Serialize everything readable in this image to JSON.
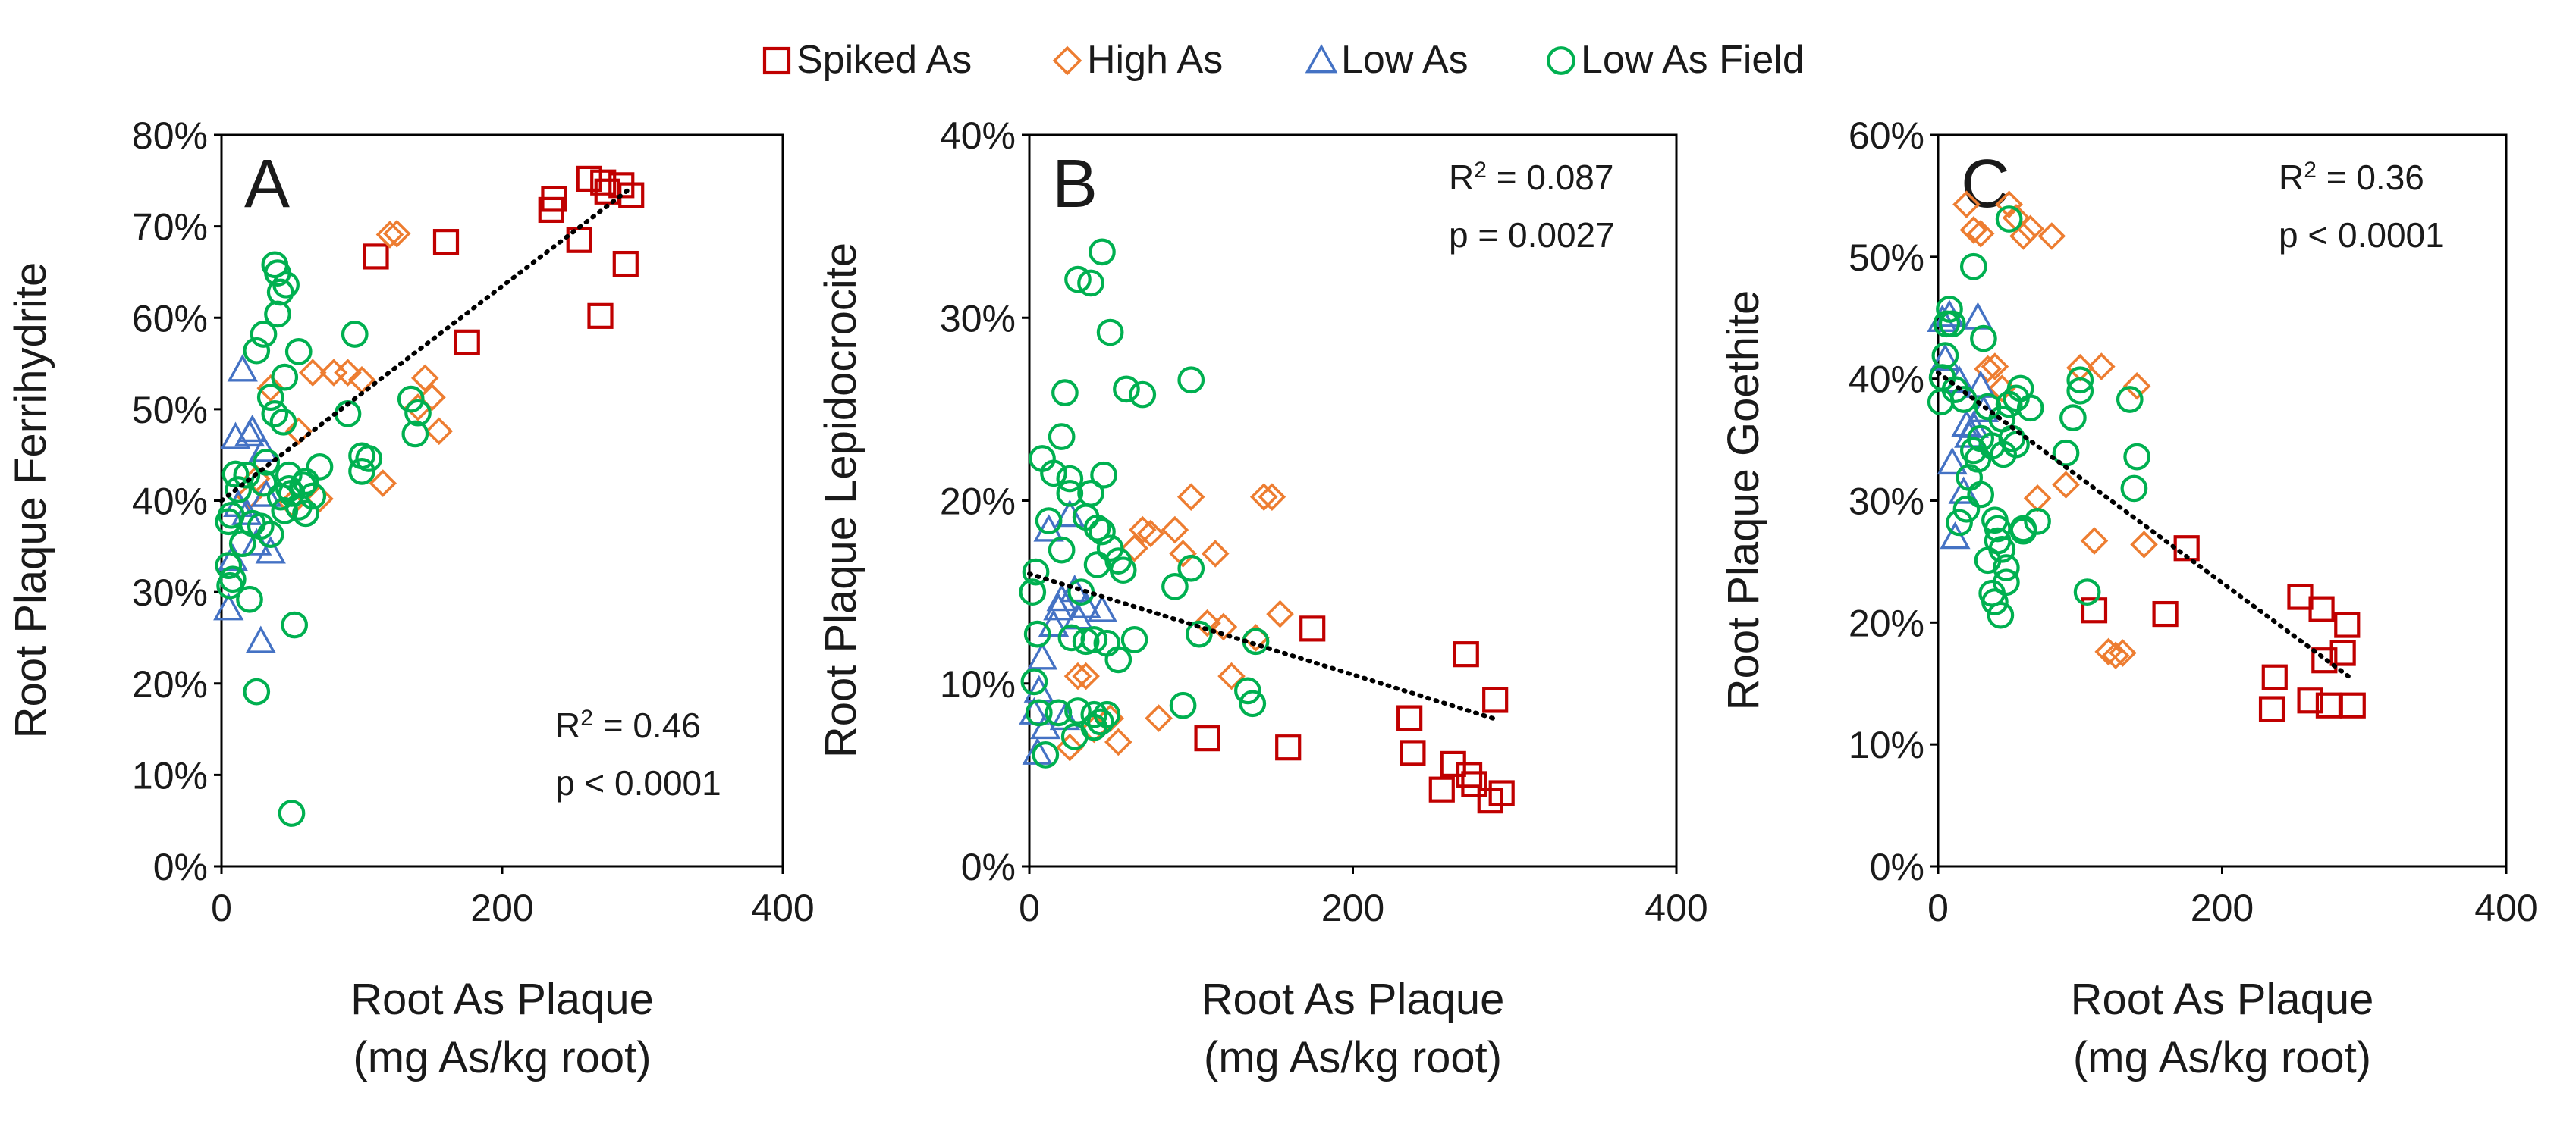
{
  "figure": {
    "legend": {
      "position": "top-center",
      "items": [
        {
          "series_index": 0,
          "label": "Spiked As",
          "marker": "square",
          "color": "#c00000"
        },
        {
          "series_index": 1,
          "label": "High As",
          "marker": "diamond",
          "color": "#ed7d31"
        },
        {
          "series_index": 2,
          "label": "Low As",
          "marker": "triangle",
          "color": "#4472c4"
        },
        {
          "series_index": 3,
          "label": "Low As Field",
          "marker": "circle",
          "color": "#00b050"
        }
      ]
    }
  },
  "chart_data": [
    {
      "type": "scatter",
      "panel_letter": "A",
      "ylabel": "Root Plaque Ferrihydrite",
      "xlabel_line1": "Root As Plaque",
      "xlabel_line2": "(mg As/kg root)",
      "xlim": [
        0,
        400
      ],
      "ylim": [
        0,
        80
      ],
      "x_ticks": [
        0,
        200,
        400
      ],
      "x_tick_labels": [
        "0",
        "200",
        "400"
      ],
      "y_ticks": [
        0,
        10,
        20,
        30,
        40,
        50,
        60,
        70,
        80
      ],
      "y_tick_labels": [
        "0%",
        "10%",
        "20%",
        "30%",
        "40%",
        "50%",
        "60%",
        "70%",
        "80%"
      ],
      "r2_prefix": "R",
      "r2_sup": "2",
      "r2_value": " = 0.46",
      "p_text": "p < 0.0001",
      "stats_position": "bottom-right",
      "trendline": {
        "x": [
          0,
          290
        ],
        "y": [
          40,
          74
        ]
      },
      "series": [
        {
          "name": "Spiked As",
          "x": [
            110,
            160,
            175,
            235,
            237,
            255,
            262,
            270,
            272,
            275,
            285,
            288,
            292
          ],
          "y": [
            66.7,
            68.3,
            57.3,
            71.8,
            73,
            68.5,
            75.2,
            60.2,
            74.8,
            73.8,
            74.5,
            65.9,
            73.4
          ]
        },
        {
          "name": "High As",
          "x": [
            20,
            25,
            35,
            50,
            55,
            65,
            70,
            80,
            90,
            100,
            115,
            120,
            125,
            140,
            145,
            150,
            155
          ],
          "y": [
            40.5,
            42.4,
            52.3,
            39.7,
            47.6,
            54,
            40.2,
            54,
            54,
            53.2,
            41.9,
            69.1,
            69.2,
            50.2,
            53.4,
            51.3,
            47.6
          ]
        },
        {
          "name": "Low As",
          "x": [
            5,
            8,
            10,
            12,
            15,
            18,
            20,
            22,
            25,
            28,
            30,
            32,
            35
          ],
          "y": [
            28.2,
            33.6,
            46.9,
            39.5,
            54.3,
            38.6,
            47.2,
            47.7,
            35.3,
            24.6,
            45.5,
            40.6,
            34.4
          ]
        },
        {
          "name": "Low As Field",
          "x": [
            5,
            5,
            6,
            7,
            8,
            10,
            12,
            15,
            18,
            20,
            22,
            25,
            25,
            28,
            30,
            30,
            32,
            35,
            35,
            38,
            38,
            40,
            40,
            42,
            42,
            44,
            45,
            45,
            46,
            48,
            48,
            50,
            50,
            52,
            55,
            55,
            58,
            60,
            60,
            65,
            70,
            90,
            95,
            100,
            100,
            105,
            135,
            138,
            140
          ],
          "y": [
            37.7,
            32.9,
            30.7,
            38.4,
            31.4,
            42.9,
            41.2,
            35.3,
            42.8,
            29.2,
            37.5,
            19.1,
            56.4,
            37.2,
            41.9,
            58.2,
            44.2,
            51.3,
            36.3,
            49.5,
            65.8,
            64.9,
            60.4,
            62.8,
            40.4,
            48.6,
            53.5,
            38.9,
            63.6,
            42.8,
            41.3,
            5.8,
            40.8,
            26.4,
            39.3,
            56.3,
            41.7,
            38.6,
            42.1,
            40.5,
            43.7,
            49.5,
            58.2,
            43.2,
            44.9,
            44.6,
            51.1,
            47.3,
            49.6
          ]
        }
      ]
    },
    {
      "type": "scatter",
      "panel_letter": "B",
      "ylabel": "Root Plaque Lepidocrocite",
      "xlabel_line1": "Root As Plaque",
      "xlabel_line2": "(mg As/kg root)",
      "xlim": [
        0,
        400
      ],
      "ylim": [
        0,
        40
      ],
      "x_ticks": [
        0,
        200,
        400
      ],
      "x_tick_labels": [
        "0",
        "200",
        "400"
      ],
      "y_ticks": [
        0,
        10,
        20,
        30,
        40
      ],
      "y_tick_labels": [
        "0%",
        "10%",
        "20%",
        "30%",
        "40%"
      ],
      "r2_prefix": "R",
      "r2_sup": "2",
      "r2_value": " = 0.087",
      "p_text": "p = 0.0027",
      "stats_position": "top-right",
      "trendline": {
        "x": [
          0,
          290
        ],
        "y": [
          16,
          8
        ]
      },
      "series": [
        {
          "name": "Spiked As",
          "x": [
            110,
            160,
            175,
            235,
            237,
            255,
            262,
            270,
            272,
            275,
            285,
            288,
            292
          ],
          "y": [
            7,
            6.5,
            13,
            8.1,
            6.2,
            4.2,
            5.6,
            11.6,
            5,
            4.5,
            3.6,
            9.1,
            4
          ]
        },
        {
          "name": "High As",
          "x": [
            25,
            30,
            35,
            40,
            50,
            55,
            65,
            70,
            75,
            80,
            90,
            95,
            100,
            110,
            115,
            120,
            125,
            140,
            145,
            150,
            155
          ],
          "y": [
            6.5,
            10.4,
            10.4,
            7.5,
            8.1,
            6.8,
            17.4,
            18.4,
            18.2,
            8.1,
            18.4,
            17.1,
            20.2,
            13.3,
            17.1,
            13.1,
            10.4,
            12.5,
            20.2,
            20.2,
            13.8
          ]
        },
        {
          "name": "Low As",
          "x": [
            3,
            5,
            6,
            8,
            10,
            12,
            15,
            18,
            20,
            22,
            25,
            28,
            30,
            35,
            45
          ],
          "y": [
            8.4,
            6.2,
            9.6,
            11.4,
            7.6,
            18.4,
            13.2,
            14.1,
            14.6,
            8.1,
            19.2,
            15.1,
            13.6,
            14.2,
            14
          ]
        },
        {
          "name": "Low As Field",
          "x": [
            2,
            3,
            4,
            5,
            6,
            8,
            10,
            12,
            15,
            18,
            20,
            20,
            22,
            25,
            25,
            26,
            28,
            30,
            30,
            32,
            35,
            35,
            38,
            38,
            40,
            40,
            40,
            42,
            42,
            44,
            45,
            45,
            46,
            48,
            48,
            50,
            50,
            55,
            55,
            58,
            60,
            65,
            70,
            90,
            95,
            100,
            100,
            105,
            135,
            138,
            140
          ],
          "y": [
            15,
            10.1,
            16.1,
            12.7,
            8.4,
            22.3,
            6.1,
            18.9,
            21.5,
            8.4,
            23.5,
            17.3,
            25.9,
            20.4,
            21.2,
            12.5,
            7.1,
            8.5,
            32.1,
            15,
            19.1,
            12.3,
            20.4,
            31.9,
            8.3,
            7.6,
            12.4,
            18.5,
            16.5,
            7.9,
            33.6,
            18.3,
            21.4,
            12.2,
            8.3,
            17.4,
            29.2,
            16.7,
            11.3,
            16.2,
            26.1,
            12.4,
            25.8,
            15.3,
            8.8,
            16.3,
            26.6,
            12.7,
            9.6,
            8.9,
            12.3
          ]
        }
      ]
    },
    {
      "type": "scatter",
      "panel_letter": "C",
      "ylabel": "Root Plaque Goethite",
      "xlabel_line1": "Root As Plaque",
      "xlabel_line2": "(mg As/kg root)",
      "xlim": [
        0,
        400
      ],
      "ylim": [
        0,
        60
      ],
      "x_ticks": [
        0,
        200,
        400
      ],
      "x_tick_labels": [
        "0",
        "200",
        "400"
      ],
      "y_ticks": [
        0,
        10,
        20,
        30,
        40,
        50,
        60
      ],
      "y_tick_labels": [
        "0%",
        "10%",
        "20%",
        "30%",
        "40%",
        "50%",
        "60%"
      ],
      "r2_prefix": "R",
      "r2_sup": "2",
      "r2_value": " = 0.36",
      "p_text": "p < 0.0001",
      "stats_position": "top-right",
      "trendline": {
        "x": [
          0,
          290
        ],
        "y": [
          40.5,
          15.5
        ]
      },
      "series": [
        {
          "name": "Spiked As",
          "x": [
            110,
            160,
            175,
            235,
            237,
            255,
            262,
            270,
            272,
            275,
            285,
            288,
            292
          ],
          "y": [
            21,
            20.7,
            26.1,
            12.9,
            15.5,
            22.1,
            13.6,
            21.1,
            16.9,
            13.2,
            17.5,
            19.8,
            13.2
          ]
        },
        {
          "name": "High As",
          "x": [
            20,
            25,
            30,
            35,
            40,
            45,
            50,
            55,
            60,
            65,
            70,
            80,
            90,
            100,
            110,
            115,
            120,
            125,
            130,
            140,
            145
          ],
          "y": [
            54.3,
            52.2,
            51.9,
            40.8,
            41,
            39.2,
            54.3,
            53.2,
            51.7,
            52.3,
            30.2,
            51.7,
            31.3,
            40.9,
            26.7,
            41,
            17.6,
            17.3,
            17.5,
            39.4,
            26.4
          ]
        },
        {
          "name": "Low As",
          "x": [
            3,
            5,
            8,
            10,
            12,
            15,
            18,
            20,
            22,
            25,
            28,
            30,
            32
          ],
          "y": [
            44.8,
            41.6,
            45.2,
            33.1,
            27,
            39.8,
            30.7,
            36.2,
            35.3,
            36.1,
            45,
            39.4,
            37.4
          ]
        },
        {
          "name": "Low As Field",
          "x": [
            2,
            3,
            5,
            6,
            8,
            10,
            12,
            15,
            18,
            20,
            22,
            25,
            25,
            28,
            30,
            30,
            32,
            35,
            35,
            38,
            38,
            40,
            40,
            42,
            42,
            44,
            45,
            45,
            46,
            48,
            48,
            50,
            50,
            52,
            55,
            55,
            58,
            60,
            60,
            65,
            70,
            90,
            95,
            100,
            100,
            105,
            135,
            138,
            140
          ],
          "y": [
            38.1,
            40.1,
            41.9,
            44.5,
            45.7,
            44.5,
            39.1,
            28.2,
            38.3,
            29.3,
            31.9,
            34.1,
            49.2,
            33.4,
            30.5,
            35.1,
            43.3,
            25.1,
            37.7,
            34.5,
            22.4,
            21.7,
            28.4,
            27.7,
            26.7,
            20.6,
            26,
            36.7,
            33.8,
            24.5,
            23.3,
            53.1,
            37.9,
            35.1,
            34.6,
            38.4,
            39.2,
            27.7,
            27.5,
            37.6,
            28.3,
            33.9,
            36.8,
            39.9,
            39,
            22.5,
            38.3,
            31,
            33.6
          ]
        }
      ]
    }
  ]
}
